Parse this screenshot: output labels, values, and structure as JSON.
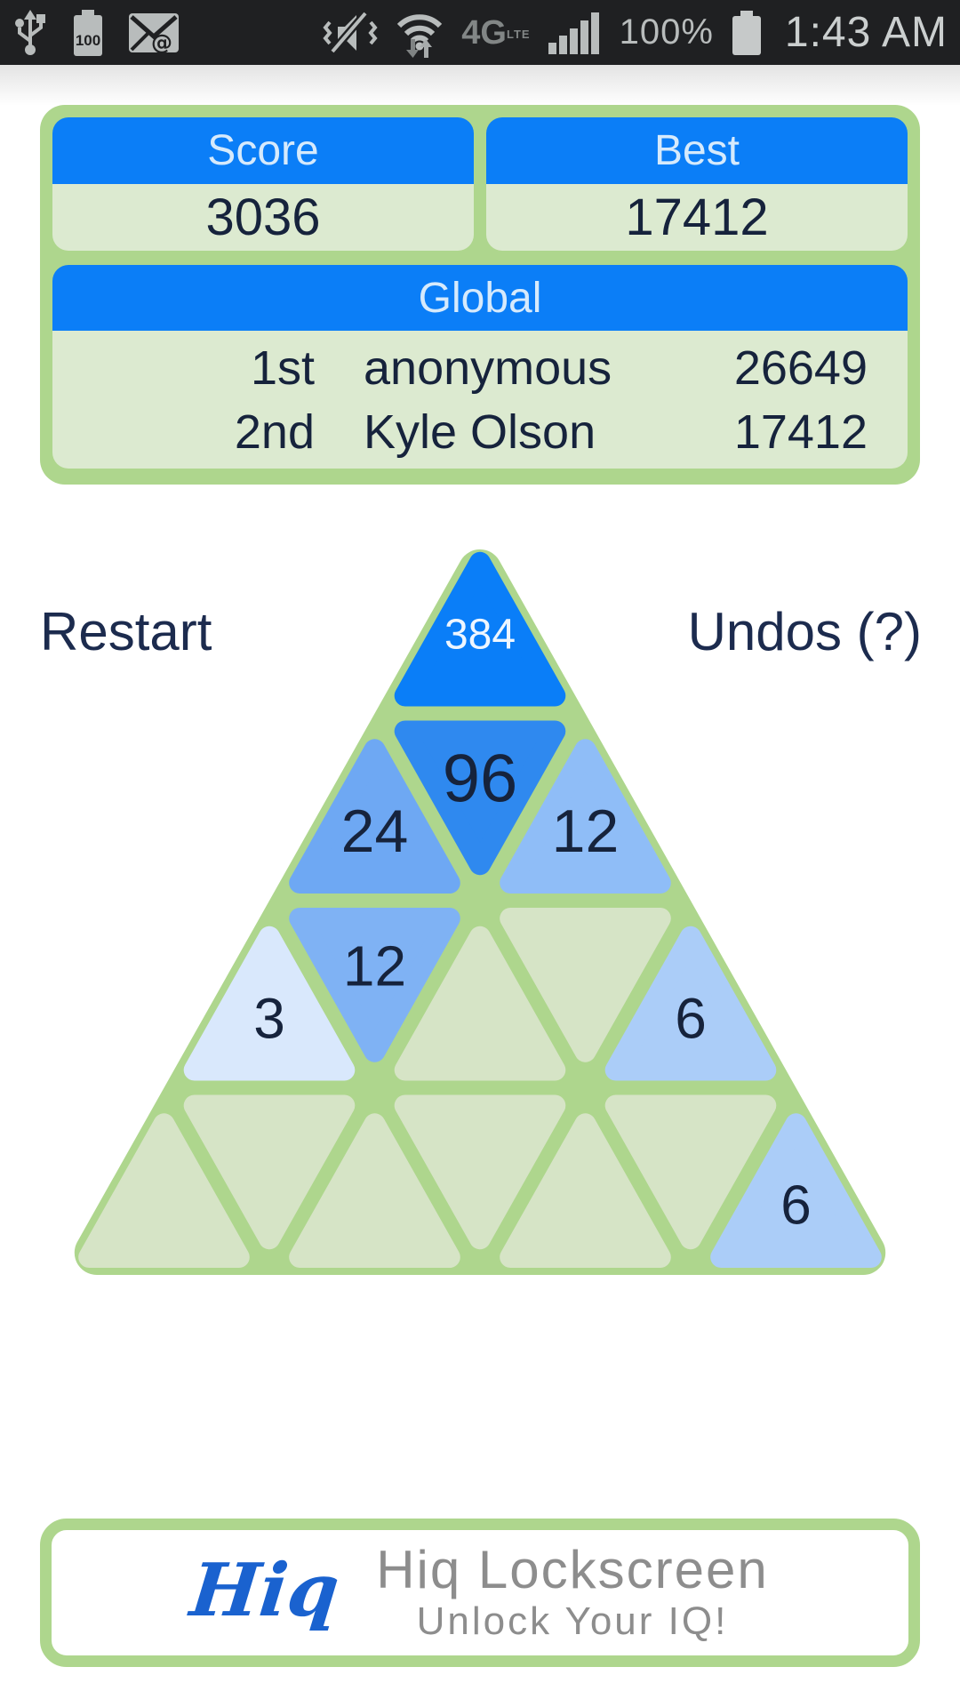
{
  "status_bar": {
    "time": "1:43 AM",
    "battery_percent": "100%",
    "battery_level": "100",
    "network": "4G",
    "network_sub": "LTE"
  },
  "scoreboard": {
    "score_label": "Score",
    "score_value": "3036",
    "best_label": "Best",
    "best_value": "17412",
    "global_label": "Global",
    "leaderboard": [
      {
        "rank": "1st",
        "name": "anonymous",
        "score": "26649"
      },
      {
        "rank": "2nd",
        "name": "Kyle Olson",
        "score": "17412"
      }
    ]
  },
  "controls": {
    "restart": "Restart",
    "undos": "Undos (?)"
  },
  "board": {
    "frame_color": "#aed68d",
    "empty_color": "#d6e4c6",
    "rows": [
      [
        {
          "value": "384",
          "bg": "#0a7ef8",
          "fg": "#eef6ff",
          "fs": 48
        }
      ],
      [
        {
          "value": "24",
          "bg": "#6ea8f3",
          "fg": "#16233c",
          "fs": 68
        },
        {
          "value": "96",
          "bg": "#2f89ef",
          "fg": "#16233c",
          "fs": 76
        },
        {
          "value": "12",
          "bg": "#8fbdf7",
          "fg": "#16233c",
          "fs": 68
        }
      ],
      [
        {
          "value": "3",
          "bg": "#d9e8fc",
          "fg": "#16233c",
          "fs": 64
        },
        {
          "value": "12",
          "bg": "#7fb2f4",
          "fg": "#16233c",
          "fs": 64
        },
        {
          "value": null,
          "bg": "#d6e4c6"
        },
        {
          "value": null,
          "bg": "#d6e4c6"
        },
        {
          "value": "6",
          "bg": "#abcdf8",
          "fg": "#16233c",
          "fs": 64
        }
      ],
      [
        {
          "value": null,
          "bg": "#d6e4c6"
        },
        {
          "value": null,
          "bg": "#d6e4c6"
        },
        {
          "value": null,
          "bg": "#d6e4c6"
        },
        {
          "value": null,
          "bg": "#d6e4c6"
        },
        {
          "value": null,
          "bg": "#d6e4c6"
        },
        {
          "value": null,
          "bg": "#d6e4c6"
        },
        {
          "value": "6",
          "bg": "#abcdf8",
          "fg": "#16233c",
          "fs": 62
        }
      ]
    ]
  },
  "ad_banner": {
    "logo": "Hiq",
    "title": "Hiq Lockscreen",
    "subtitle": "Unlock Your IQ!"
  },
  "colors": {
    "accent_blue": "#0b7ef7",
    "panel_green": "#aed68d",
    "panel_body_green": "#dcead0",
    "navy_text": "#16233c",
    "header_text": "#d6eafc",
    "statusbar_bg": "#1f2022"
  }
}
